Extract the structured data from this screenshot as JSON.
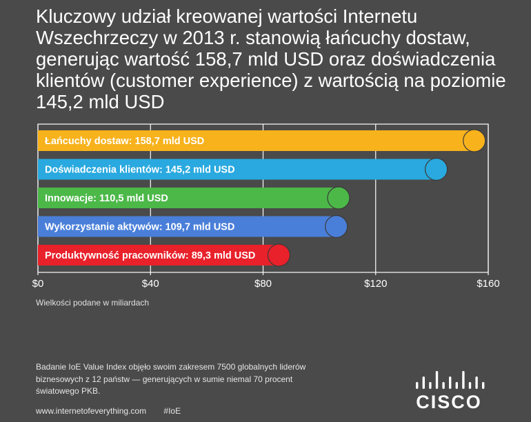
{
  "headline": "Kluczowy udział kreowanej wartości Internetu Wszechrzeczy w 2013 r. stanowią łańcuchy dostaw, generując wartość 158,7 mld USD oraz doświadczenia klientów (customer experience) z wartością na poziomie 145,2 mld USD",
  "chart_data": {
    "type": "bar",
    "orientation": "horizontal",
    "categories": [
      "Łańcuchy dostaw: 158,7 mld USD",
      "Doświadczenia klientów: 145,2 mld USD",
      "Innowacje: 110,5 mld USD",
      "Wykorzystanie aktywów: 109,7 mld USD",
      "Produktywność pracowników: 89,3 mld USD"
    ],
    "values": [
      158.7,
      145.2,
      110.5,
      109.7,
      89.3
    ],
    "colors": [
      "#f7b21c",
      "#29a9df",
      "#4cb848",
      "#4a7fd9",
      "#e8212a"
    ],
    "xlim": [
      0,
      160
    ],
    "xticks": [
      0,
      40,
      80,
      120,
      160
    ],
    "xtick_labels": [
      "$0",
      "$40",
      "$80",
      "$120",
      "$160"
    ],
    "unit_note": "Wielkości podane w miliardach",
    "grid": true
  },
  "footnote": "Badanie IoE Value Index objęło swoim zakresem 7500 globalnych liderów biznesowych z 12 państw — generujących w sumie niemal 70 procent światowego PKB.",
  "footer": {
    "url": "www.internetofeverything.com",
    "hashtag": "#IoE"
  },
  "logo": {
    "word": "CISCO"
  }
}
